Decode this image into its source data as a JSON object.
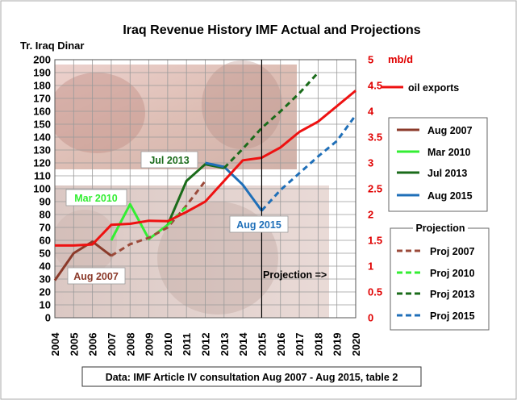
{
  "chart_data": {
    "type": "line",
    "title": "Iraq Revenue History IMF Actual and Projections",
    "ylabel": "Tr. Iraq Dinar",
    "y2label": "mb/d",
    "x": [
      2004,
      2005,
      2006,
      2007,
      2008,
      2009,
      2010,
      2011,
      2012,
      2013,
      2014,
      2015,
      2016,
      2017,
      2018,
      2019,
      2020
    ],
    "x_ticks": [
      "2004",
      "2005",
      "2006",
      "2007",
      "2008",
      "2009",
      "2010",
      "2011",
      "2012",
      "2013",
      "2014",
      "2015",
      "2016",
      "2017",
      "2018",
      "2019",
      "2020"
    ],
    "ylim": [
      0,
      200
    ],
    "y_ticks": [
      "0",
      "10",
      "20",
      "30",
      "40",
      "50",
      "60",
      "70",
      "80",
      "90",
      "100",
      "110",
      "120",
      "130",
      "140",
      "150",
      "160",
      "170",
      "180",
      "190",
      "200"
    ],
    "y2lim": [
      0,
      5
    ],
    "y2_ticks": [
      "0",
      "0.5",
      "1",
      "1.5",
      "2",
      "2.5",
      "3",
      "3.5",
      "4",
      "4.5",
      "5"
    ],
    "grid": true,
    "series": [
      {
        "name": "Aug 2007",
        "color": "#8B3A2A",
        "dash": false,
        "axis": "left",
        "x": [
          2004,
          2005,
          2006,
          2007
        ],
        "y": [
          29,
          50,
          59,
          48
        ]
      },
      {
        "name": "Mar 2010",
        "color": "#33EE33",
        "dash": false,
        "axis": "left",
        "x": [
          2007,
          2008,
          2009,
          2010
        ],
        "y": [
          60,
          88,
          61,
          72
        ]
      },
      {
        "name": "Jul 2013",
        "color": "#1A6B1A",
        "dash": false,
        "axis": "left",
        "x": [
          2010,
          2011,
          2012,
          2013
        ],
        "y": [
          72,
          106,
          119,
          116
        ]
      },
      {
        "name": "Aug 2015",
        "color": "#1F6FB8",
        "dash": false,
        "axis": "left",
        "x": [
          2012,
          2013,
          2014,
          2015
        ],
        "y": [
          120,
          117,
          103,
          83
        ]
      },
      {
        "name": "Proj 2007",
        "color": "#9B4A3A",
        "dash": true,
        "axis": "left",
        "x": [
          2007,
          2008,
          2009,
          2010,
          2011,
          2012
        ],
        "y": [
          48,
          57,
          62,
          70,
          87,
          106
        ]
      },
      {
        "name": "Proj 2010",
        "color": "#33EE33",
        "dash": true,
        "axis": "left",
        "x": [
          2010,
          2011
        ],
        "y": [
          72,
          86
        ]
      },
      {
        "name": "Proj 2013",
        "color": "#1A6B1A",
        "dash": true,
        "axis": "left",
        "x": [
          2013,
          2014,
          2015,
          2016,
          2017,
          2018
        ],
        "y": [
          116,
          131,
          147,
          160,
          174,
          190
        ]
      },
      {
        "name": "Proj 2015",
        "color": "#1F6FB8",
        "dash": true,
        "axis": "left",
        "x": [
          2015,
          2016,
          2017,
          2018,
          2019,
          2020
        ],
        "y": [
          83,
          99,
          112,
          125,
          137,
          157
        ]
      },
      {
        "name": "oil exports",
        "color": "#EE1111",
        "dash": false,
        "axis": "right",
        "x": [
          2004,
          2005,
          2006,
          2007,
          2008,
          2009,
          2010,
          2011,
          2012,
          2013,
          2014,
          2015,
          2016,
          2017,
          2018,
          2019,
          2020
        ],
        "y": [
          1.4,
          1.4,
          1.42,
          1.8,
          1.82,
          1.88,
          1.87,
          2.05,
          2.25,
          2.65,
          3.05,
          3.1,
          3.3,
          3.6,
          3.8,
          4.1,
          4.4
        ]
      }
    ],
    "legends": {
      "actual_entries": [
        "Aug 2007",
        "Mar 2010",
        "Jul 2013",
        "Aug 2015"
      ],
      "projection_title": "Projection",
      "projection_entries": [
        "Proj 2007",
        "Proj 2010",
        "Proj 2013",
        "Proj 2015"
      ],
      "oil_entry": "oil exports"
    },
    "annotations": {
      "aug2007": "Aug 2007",
      "mar2010": "Mar 2010",
      "jul2013": "Jul 2013",
      "aug2015": "Aug 2015",
      "projection_arrow": "Projection =>",
      "source": "Data: IMF Article IV consultation Aug 2007 - Aug 2015, table 2"
    },
    "projection_divider_x": 2015
  }
}
